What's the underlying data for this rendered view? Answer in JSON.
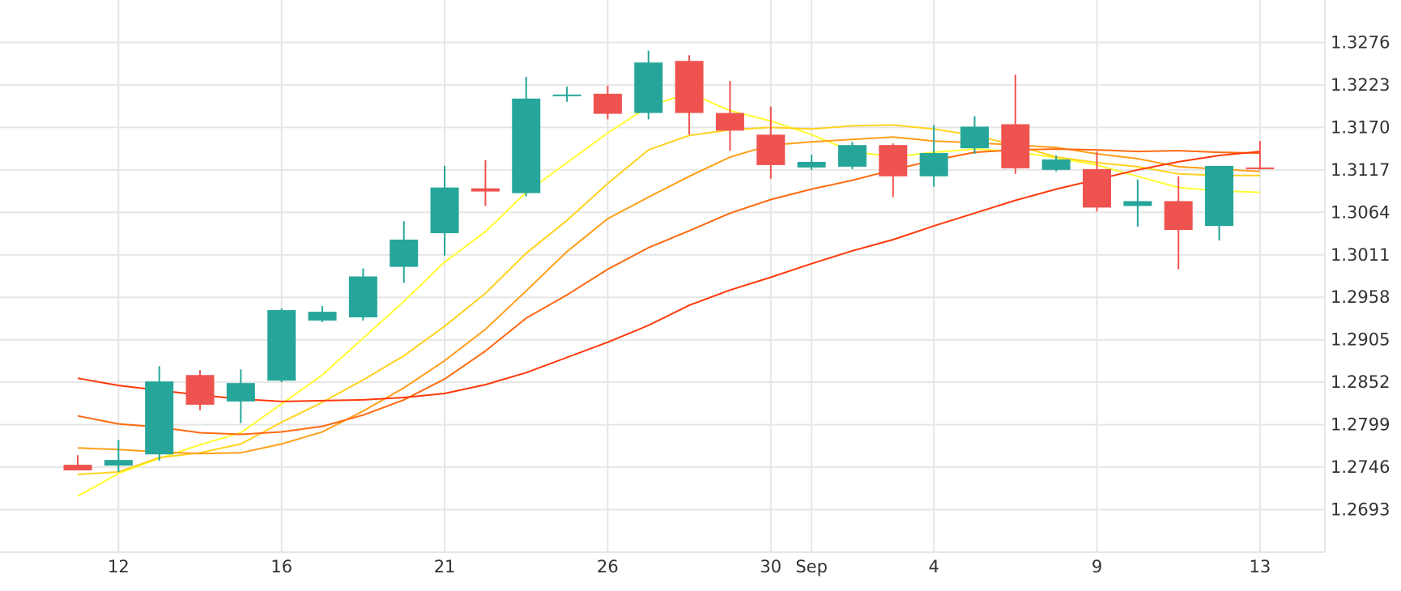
{
  "chart_data": {
    "type": "candlestick",
    "grid": true,
    "colors": {
      "up": "#26a69a",
      "down": "#ef5350",
      "grid": "#e6e6e6",
      "axis_text": "#333333"
    },
    "y_axis": {
      "position": "right",
      "ticks": [
        "1.3276",
        "1.3223",
        "1.3170",
        "1.3117",
        "1.3064",
        "1.3011",
        "1.2958",
        "1.2905",
        "1.2852",
        "1.2799",
        "1.2746",
        "1.2693"
      ],
      "range": [
        1.264,
        1.3329
      ]
    },
    "x_axis": {
      "ticks": [
        {
          "label": "12",
          "index": 1
        },
        {
          "label": "16",
          "index": 5
        },
        {
          "label": "21",
          "index": 9
        },
        {
          "label": "26",
          "index": 13
        },
        {
          "label": "30",
          "index": 17
        },
        {
          "label": "Sep",
          "index": 18
        },
        {
          "label": "4",
          "index": 21
        },
        {
          "label": "9",
          "index": 25
        },
        {
          "label": "13",
          "index": 29
        }
      ]
    },
    "candles": [
      {
        "o": 1.2749,
        "h": 1.2761,
        "l": 1.2744,
        "c": 1.2742
      },
      {
        "o": 1.2748,
        "h": 1.278,
        "l": 1.274,
        "c": 1.2755
      },
      {
        "o": 1.2762,
        "h": 1.2872,
        "l": 1.2754,
        "c": 1.2853
      },
      {
        "o": 1.2861,
        "h": 1.2867,
        "l": 1.2817,
        "c": 1.2824
      },
      {
        "o": 1.2828,
        "h": 1.2868,
        "l": 1.2801,
        "c": 1.2851
      },
      {
        "o": 1.2854,
        "h": 1.2944,
        "l": 1.2852,
        "c": 1.2942
      },
      {
        "o": 1.2929,
        "h": 1.2947,
        "l": 1.2927,
        "c": 1.294
      },
      {
        "o": 1.2933,
        "h": 1.2994,
        "l": 1.2929,
        "c": 1.2984
      },
      {
        "o": 1.2996,
        "h": 1.3053,
        "l": 1.2976,
        "c": 1.303
      },
      {
        "o": 1.3038,
        "h": 1.3122,
        "l": 1.301,
        "c": 1.3095
      },
      {
        "o": 1.3094,
        "h": 1.3129,
        "l": 1.3072,
        "c": 1.309
      },
      {
        "o": 1.3088,
        "h": 1.3233,
        "l": 1.3084,
        "c": 1.3206
      },
      {
        "o": 1.3211,
        "h": 1.3221,
        "l": 1.3202,
        "c": 1.3211
      },
      {
        "o": 1.3212,
        "h": 1.3222,
        "l": 1.318,
        "c": 1.3187
      },
      {
        "o": 1.3188,
        "h": 1.3266,
        "l": 1.318,
        "c": 1.3251
      },
      {
        "o": 1.3253,
        "h": 1.326,
        "l": 1.3161,
        "c": 1.3188
      },
      {
        "o": 1.3188,
        "h": 1.3228,
        "l": 1.3141,
        "c": 1.3166
      },
      {
        "o": 1.3161,
        "h": 1.3196,
        "l": 1.3106,
        "c": 1.3123
      },
      {
        "o": 1.312,
        "h": 1.3136,
        "l": 1.3117,
        "c": 1.3127
      },
      {
        "o": 1.3121,
        "h": 1.3152,
        "l": 1.3118,
        "c": 1.3148
      },
      {
        "o": 1.3148,
        "h": 1.315,
        "l": 1.3083,
        "c": 1.3109
      },
      {
        "o": 1.3109,
        "h": 1.3173,
        "l": 1.3096,
        "c": 1.3138
      },
      {
        "o": 1.3144,
        "h": 1.3184,
        "l": 1.3137,
        "c": 1.3171
      },
      {
        "o": 1.3174,
        "h": 1.3236,
        "l": 1.3112,
        "c": 1.3119
      },
      {
        "o": 1.3117,
        "h": 1.3135,
        "l": 1.3115,
        "c": 1.313
      },
      {
        "o": 1.3118,
        "h": 1.314,
        "l": 1.3065,
        "c": 1.307
      },
      {
        "o": 1.3072,
        "h": 1.3105,
        "l": 1.3046,
        "c": 1.3078
      },
      {
        "o": 1.3078,
        "h": 1.3109,
        "l": 1.2993,
        "c": 1.3042
      },
      {
        "o": 1.3047,
        "h": 1.3121,
        "l": 1.3029,
        "c": 1.3122
      },
      {
        "o": 1.312,
        "h": 1.3153,
        "l": 1.3117,
        "c": 1.3118
      }
    ],
    "moving_averages": [
      {
        "color": "#ffff33",
        "values": [
          1.271,
          1.2738,
          1.2757,
          1.2774,
          1.2789,
          1.2825,
          1.2861,
          1.2907,
          1.2953,
          1.3002,
          1.304,
          1.3089,
          1.3126,
          1.3163,
          1.3196,
          1.3213,
          1.3191,
          1.3178,
          1.3161,
          1.314,
          1.3133,
          1.3139,
          1.3143,
          1.314,
          1.3132,
          1.3123,
          1.3109,
          1.3095,
          1.3091,
          1.3089
        ]
      },
      {
        "color": "#ffd21e",
        "values": [
          1.2737,
          1.274,
          1.2758,
          1.2764,
          1.2775,
          1.2802,
          1.2827,
          1.2855,
          1.2885,
          1.2922,
          1.2963,
          1.3013,
          1.3054,
          1.31,
          1.3142,
          1.316,
          1.3167,
          1.317,
          1.3168,
          1.3172,
          1.3173,
          1.3168,
          1.316,
          1.3148,
          1.3133,
          1.3126,
          1.3121,
          1.3112,
          1.311,
          1.311
        ]
      },
      {
        "color": "#ff9f19",
        "values": [
          1.277,
          1.2768,
          1.2765,
          1.2763,
          1.2764,
          1.2775,
          1.279,
          1.2816,
          1.2845,
          1.2879,
          1.2918,
          1.2966,
          1.3015,
          1.3056,
          1.3083,
          1.3109,
          1.3133,
          1.3148,
          1.3152,
          1.3155,
          1.3158,
          1.3153,
          1.3151,
          1.3148,
          1.3145,
          1.3137,
          1.3131,
          1.3121,
          1.3118,
          1.3115
        ]
      },
      {
        "color": "#ff6a10",
        "values": [
          1.281,
          1.28,
          1.2796,
          1.2789,
          1.2787,
          1.279,
          1.2797,
          1.2811,
          1.283,
          1.2856,
          1.2891,
          1.2932,
          1.2961,
          1.2993,
          1.302,
          1.3041,
          1.3063,
          1.308,
          1.3093,
          1.3104,
          1.3117,
          1.3129,
          1.3139,
          1.3142,
          1.3143,
          1.3142,
          1.314,
          1.3141,
          1.3139,
          1.3138
        ]
      },
      {
        "color": "#ff3a0a",
        "values": [
          1.2857,
          1.2848,
          1.2842,
          1.2836,
          1.2831,
          1.2828,
          1.2829,
          1.283,
          1.2833,
          1.2838,
          1.2849,
          1.2864,
          1.2883,
          1.2902,
          1.2923,
          1.2948,
          1.2967,
          1.2983,
          1.3,
          1.3016,
          1.303,
          1.3047,
          1.3063,
          1.3079,
          1.3093,
          1.3105,
          1.3117,
          1.3127,
          1.3135,
          1.314
        ]
      }
    ]
  }
}
